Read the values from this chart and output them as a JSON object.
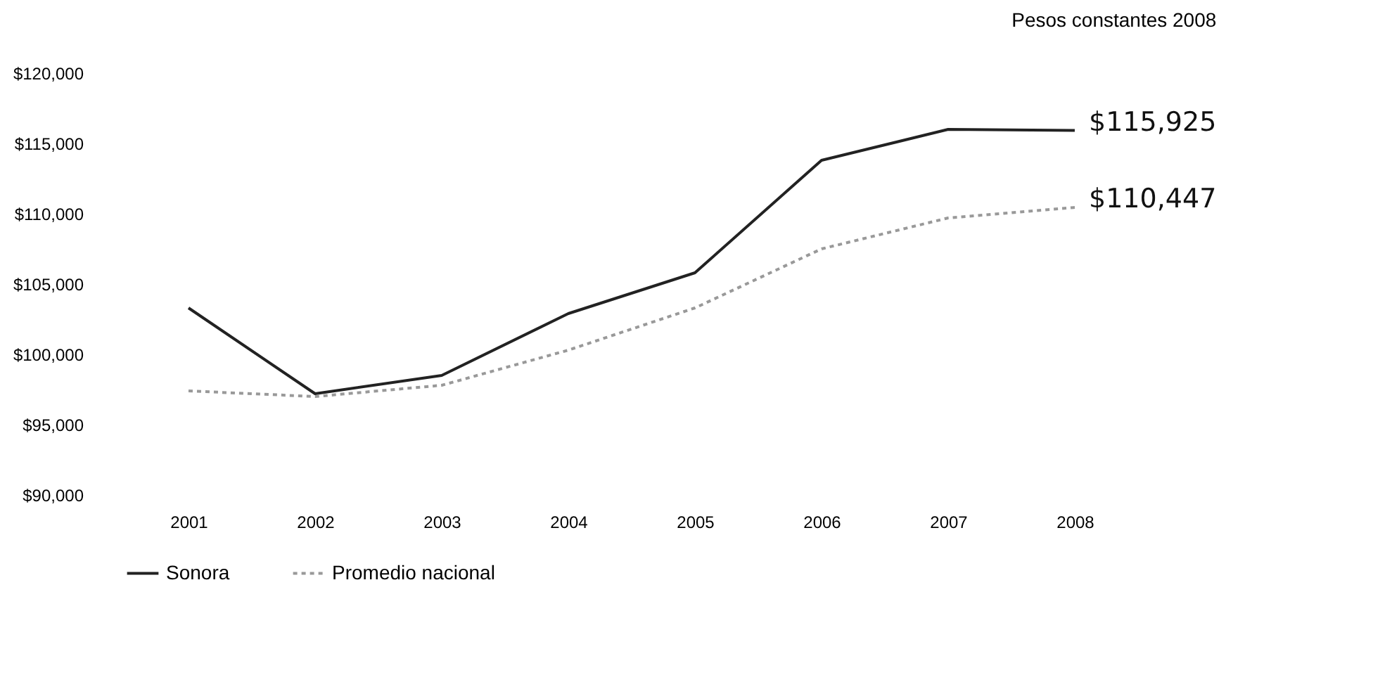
{
  "chart_data": {
    "type": "line",
    "annotations": [
      "Pesos constantes 2008"
    ],
    "categories": [
      "2001",
      "2002",
      "2003",
      "2004",
      "2005",
      "2006",
      "2007",
      "2008"
    ],
    "ylim": [
      90000,
      120000
    ],
    "yticks": [
      {
        "value": 90000,
        "label": "$90,000"
      },
      {
        "value": 95000,
        "label": "$95,000"
      },
      {
        "value": 100000,
        "label": "$100,000"
      },
      {
        "value": 105000,
        "label": "$105,000"
      },
      {
        "value": 110000,
        "label": "$110,000"
      },
      {
        "value": 115000,
        "label": "$115,000"
      },
      {
        "value": 120000,
        "label": "$120,000"
      }
    ],
    "legend": "bottom",
    "series": [
      {
        "name": "Sonora",
        "color": "#222222",
        "line_style": "solid",
        "values": [
          103300,
          97200,
          98500,
          102900,
          105800,
          113800,
          116000,
          115925
        ],
        "value_labels": [
          null,
          null,
          null,
          null,
          null,
          null,
          null,
          "$115,925"
        ]
      },
      {
        "name": "Promedio nacional",
        "color": "#999999",
        "line_style": "dotted",
        "values": [
          97400,
          97000,
          97800,
          100300,
          103300,
          107500,
          109700,
          110447
        ],
        "value_labels": [
          null,
          null,
          null,
          null,
          null,
          null,
          null,
          "$110,447"
        ]
      }
    ]
  }
}
